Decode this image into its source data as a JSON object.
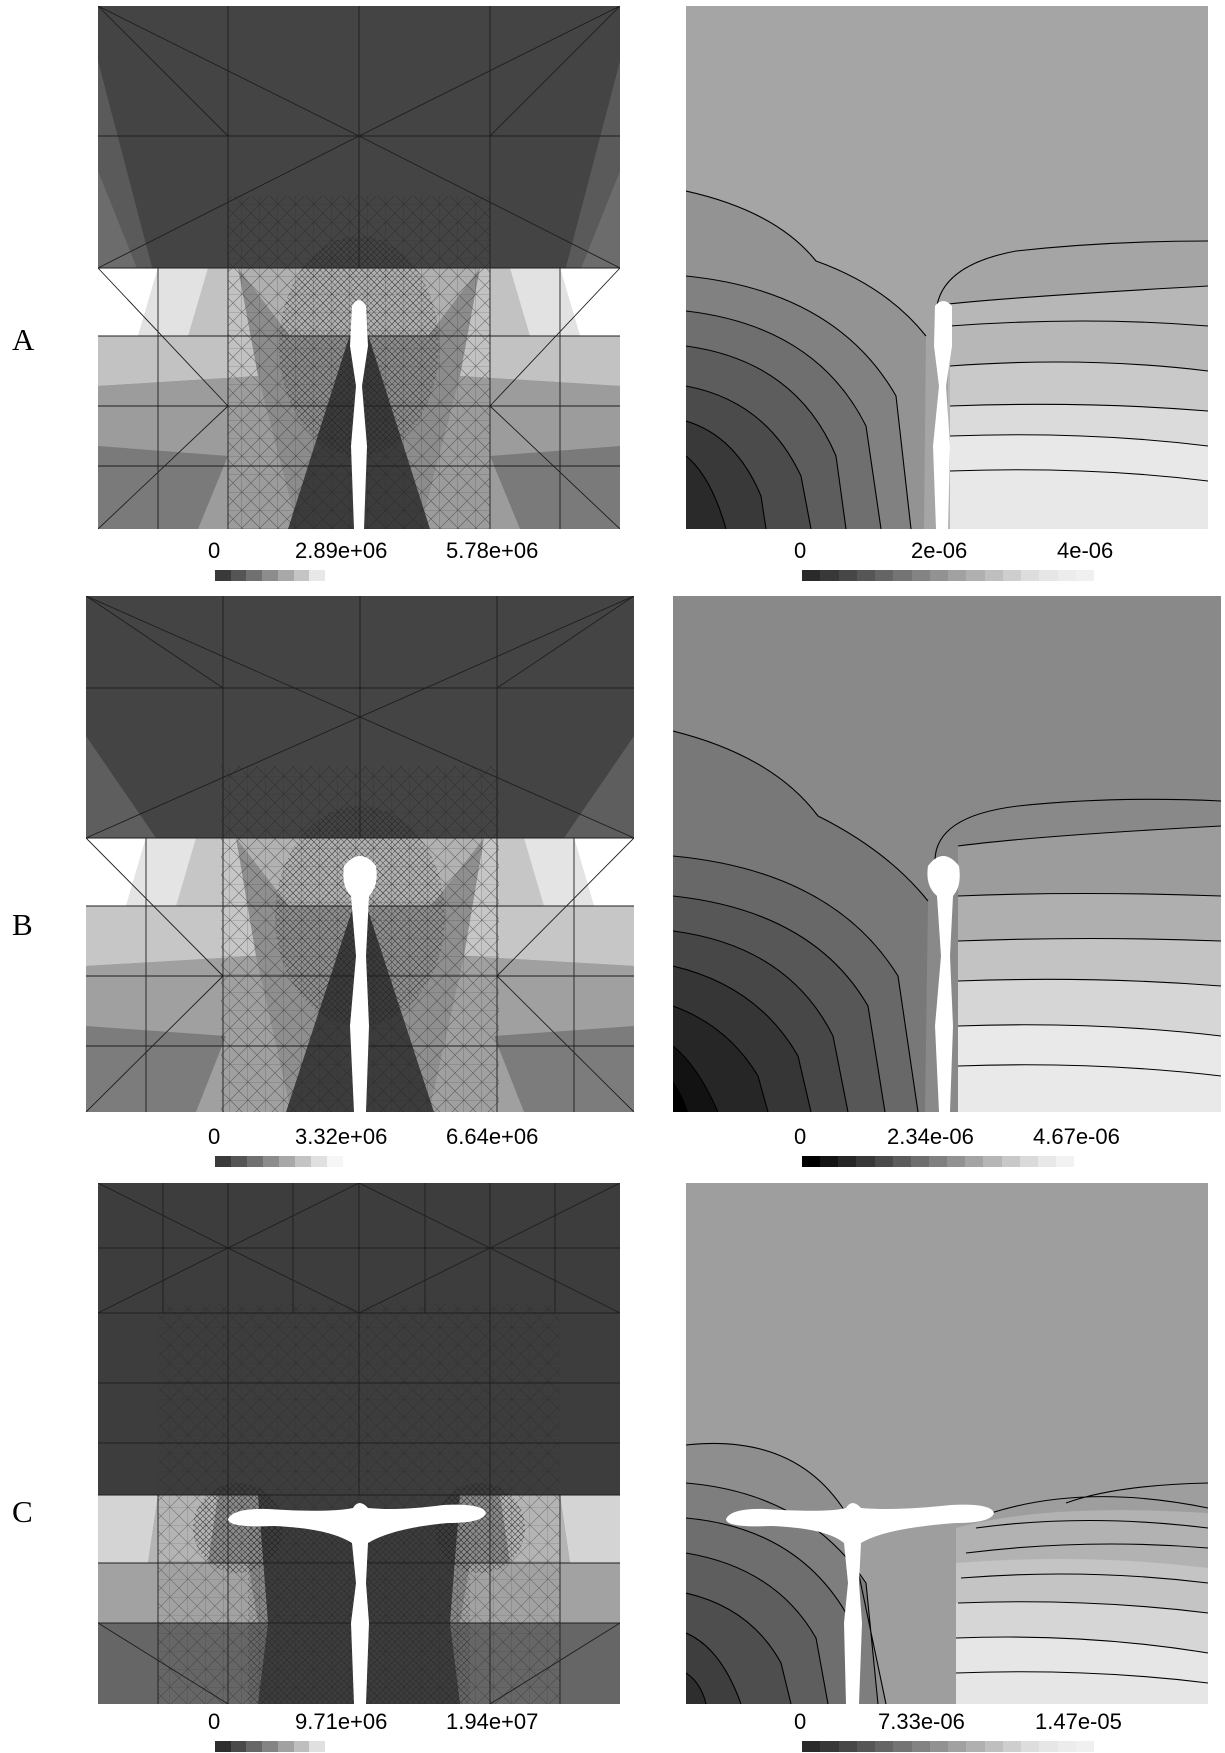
{
  "rows": [
    {
      "label": "A",
      "left": {
        "ticks": [
          "0",
          "2.89e+06",
          "5.78e+06"
        ],
        "colorbar": [
          "#3a3a3a",
          "#555555",
          "#707070",
          "#8c8c8c",
          "#a8a8a8",
          "#c4c4c4",
          "#e8e8e8"
        ]
      },
      "right": {
        "ticks": [
          "0",
          "2e-06",
          "4e-06"
        ],
        "colorbar": [
          "#2a2a2a",
          "#383838",
          "#474747",
          "#565656",
          "#656565",
          "#747474",
          "#838383",
          "#929292",
          "#a1a1a1",
          "#b0b0b0",
          "#bfbfbf",
          "#cecece",
          "#dddddd",
          "#e6e6e6",
          "#ececec",
          "#f0f0f0"
        ]
      }
    },
    {
      "label": "B",
      "left": {
        "ticks": [
          "0",
          "3.32e+06",
          "6.64e+06"
        ],
        "colorbar": [
          "#3a3a3a",
          "#555555",
          "#707070",
          "#8c8c8c",
          "#a8a8a8",
          "#c4c4c4",
          "#e0e0e0",
          "#f6f6f6"
        ]
      },
      "right": {
        "ticks": [
          "0",
          "2.34e-06",
          "4.67e-06"
        ],
        "colorbar": [
          "#000000",
          "#141414",
          "#262626",
          "#383838",
          "#4a4a4a",
          "#5c5c5c",
          "#6e6e6e",
          "#808080",
          "#929292",
          "#a4a4a4",
          "#b6b6b6",
          "#c8c8c8",
          "#dadada",
          "#e8e8e8",
          "#f2f2f2"
        ]
      }
    },
    {
      "label": "C",
      "left": {
        "ticks": [
          "0",
          "9.71e+06",
          "1.94e+07"
        ],
        "colorbar": [
          "#2e2e2e",
          "#4a4a4a",
          "#676767",
          "#848484",
          "#a1a1a1",
          "#bebebe",
          "#e0e0e0"
        ]
      },
      "right": {
        "ticks": [
          "0",
          "7.33e-06",
          "1.47e-05"
        ],
        "colorbar": [
          "#2a2a2a",
          "#383838",
          "#474747",
          "#565656",
          "#656565",
          "#747474",
          "#838383",
          "#929292",
          "#a1a1a1",
          "#b0b0b0",
          "#bfbfbf",
          "#cecece",
          "#dddddd",
          "#e6e6e6",
          "#ececec",
          "#f0f0f0"
        ]
      }
    }
  ]
}
